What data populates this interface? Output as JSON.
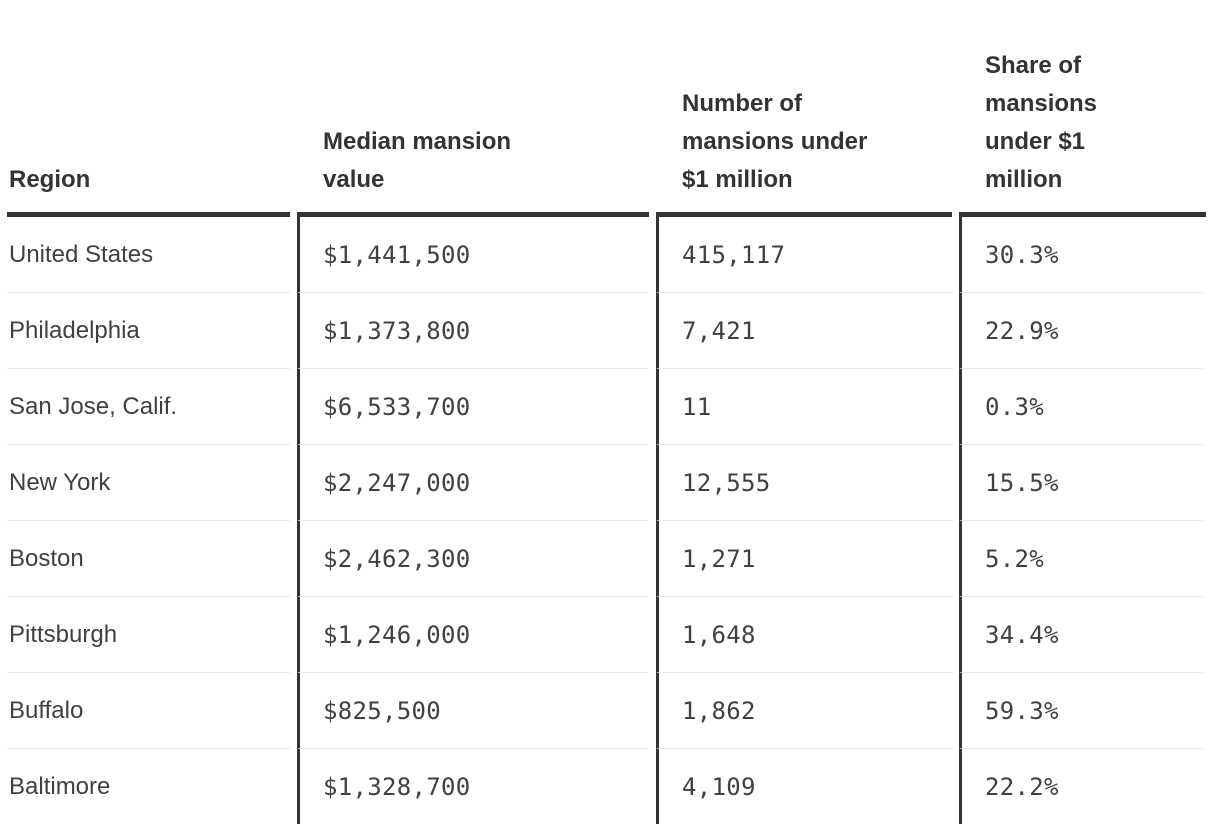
{
  "table": {
    "columns": [
      {
        "label": "Region"
      },
      {
        "label": "Median mansion\nvalue"
      },
      {
        "label": "Number of\nmansions under\n$1 million"
      },
      {
        "label": "Share of\nmansions\nunder $1\nmillion"
      }
    ],
    "rows": [
      {
        "region": "United States",
        "median_value": "$1,441,500",
        "count_under_1m": "415,117",
        "share_under_1m": "30.3%"
      },
      {
        "region": "Philadelphia",
        "median_value": "$1,373,800",
        "count_under_1m": "7,421",
        "share_under_1m": "22.9%"
      },
      {
        "region": "San Jose, Calif.",
        "median_value": "$6,533,700",
        "count_under_1m": "11",
        "share_under_1m": "0.3%"
      },
      {
        "region": "New York",
        "median_value": "$2,247,000",
        "count_under_1m": "12,555",
        "share_under_1m": "15.5%"
      },
      {
        "region": "Boston",
        "median_value": "$2,462,300",
        "count_under_1m": "1,271",
        "share_under_1m": "5.2%"
      },
      {
        "region": "Pittsburgh",
        "median_value": "$1,246,000",
        "count_under_1m": "1,648",
        "share_under_1m": "34.4%"
      },
      {
        "region": "Buffalo",
        "median_value": "$825,500",
        "count_under_1m": "1,862",
        "share_under_1m": "59.3%"
      },
      {
        "region": "Baltimore",
        "median_value": "$1,328,700",
        "count_under_1m": "4,109",
        "share_under_1m": "22.2%"
      }
    ]
  },
  "colors": {
    "header_rule": "#333333",
    "column_divider": "#333333",
    "row_separator": "#ebebeb",
    "header_text": "#333333",
    "body_text": "#404040",
    "background": "#ffffff"
  },
  "chart_data": {
    "type": "table",
    "columns": [
      "Region",
      "Median mansion value",
      "Number of mansions under $1 million",
      "Share of mansions under $1 million"
    ],
    "rows": [
      [
        "United States",
        "$1,441,500",
        "415,117",
        "30.3%"
      ],
      [
        "Philadelphia",
        "$1,373,800",
        "7,421",
        "22.9%"
      ],
      [
        "San Jose, Calif.",
        "$6,533,700",
        "11",
        "0.3%"
      ],
      [
        "New York",
        "$2,247,000",
        "12,555",
        "15.5%"
      ],
      [
        "Boston",
        "$2,462,300",
        "1,271",
        "5.2%"
      ],
      [
        "Pittsburgh",
        "$1,246,000",
        "1,648",
        "34.4%"
      ],
      [
        "Buffalo",
        "$825,500",
        "1,862",
        "59.3%"
      ],
      [
        "Baltimore",
        "$1,328,700",
        "4,109",
        "22.2%"
      ]
    ]
  }
}
